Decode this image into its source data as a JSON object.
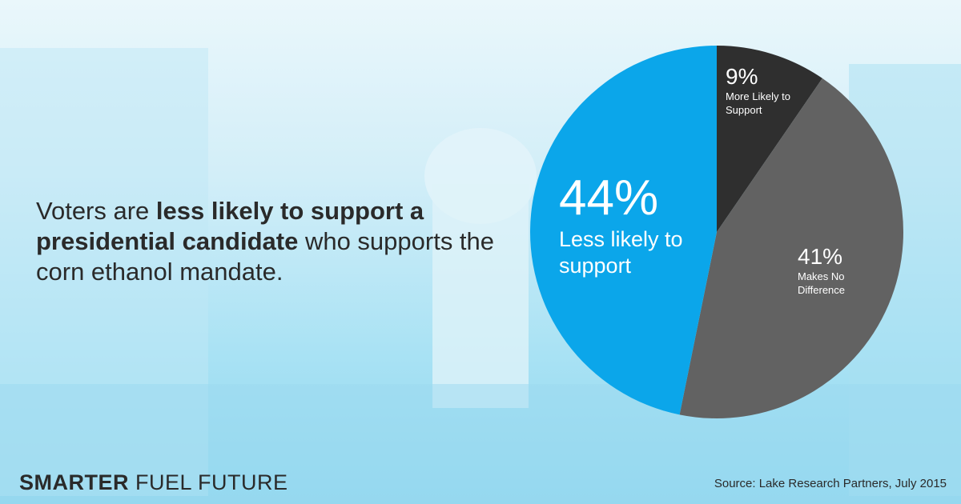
{
  "chart_data": {
    "type": "pie",
    "categories": [
      "More Likely to Support",
      "Makes No Difference",
      "Less likely to support"
    ],
    "values": [
      9,
      41,
      44
    ],
    "value_labels": [
      "9%",
      "41%",
      "44%"
    ],
    "colors": [
      "#2f2f2f",
      "#626262",
      "#0ba6ea"
    ]
  },
  "headline": {
    "parts": [
      "Voters are ",
      "less likely to support a presidential candidate",
      " who supports the corn ethanol mandate."
    ]
  },
  "brand": {
    "bold": "SMARTER",
    "regular": "FUEL FUTURE"
  },
  "source": "Source: Lake Research Partners, July 2015"
}
